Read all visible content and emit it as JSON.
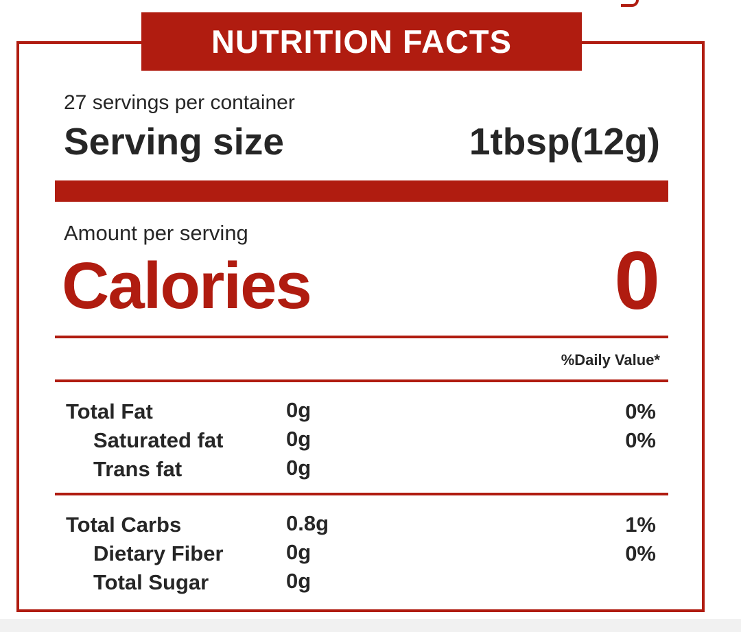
{
  "header": {
    "title": "NUTRITION FACTS"
  },
  "serving": {
    "servings_per_container": "27 servings per container",
    "size_label": "Serving size",
    "size_value": "1tbsp(12g)"
  },
  "calories": {
    "amount_label": "Amount per serving",
    "label": "Calories",
    "value": "0"
  },
  "daily_value_header": "%Daily Value*",
  "fat_section": [
    {
      "label": "Total Fat",
      "amount": "0g",
      "dv": "0%"
    },
    {
      "label": "Saturated fat",
      "amount": "0g",
      "dv": "0%"
    },
    {
      "label": "Trans fat",
      "amount": "0g",
      "dv": ""
    }
  ],
  "carb_section": [
    {
      "label": "Total Carbs",
      "amount": "0.8g",
      "dv": "1%"
    },
    {
      "label": "Dietary Fiber",
      "amount": "0g",
      "dv": "0%"
    },
    {
      "label": "Total Sugar",
      "amount": "0g",
      "dv": ""
    }
  ],
  "colors": {
    "accent": "#b01c10",
    "text": "#262626"
  }
}
